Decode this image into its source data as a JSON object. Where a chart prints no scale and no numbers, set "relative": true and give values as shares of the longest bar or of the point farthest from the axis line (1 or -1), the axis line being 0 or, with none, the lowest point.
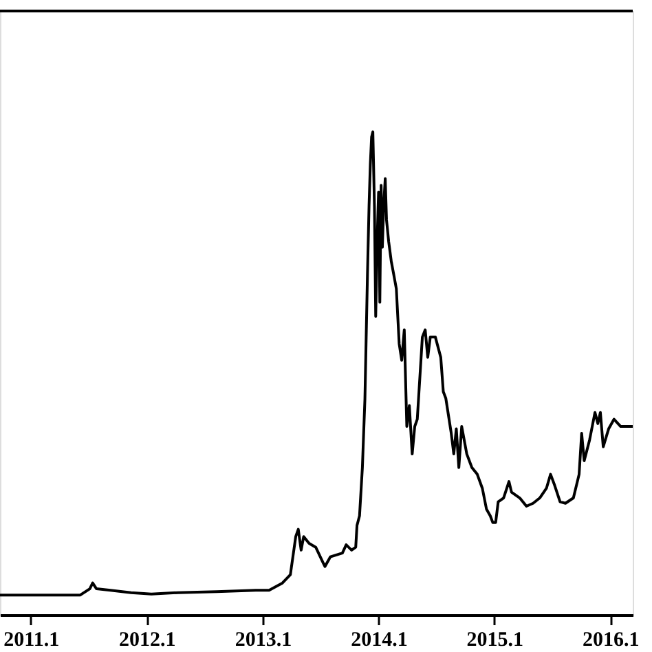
{
  "chart_data": {
    "type": "line",
    "relative": true,
    "line_style": "solid",
    "marker": "none",
    "grid": false,
    "tick_labels": "x",
    "xlim": [
      "2010-09-26",
      "2016-03-12"
    ],
    "xticks": [
      {
        "value": "2011-01",
        "label": "2011.1"
      },
      {
        "value": "2012-01",
        "label": "2012.1"
      },
      {
        "value": "2013-01",
        "label": "2013.1"
      },
      {
        "value": "2014-01",
        "label": "2014.1"
      },
      {
        "value": "2015-01",
        "label": "2015.1"
      },
      {
        "value": "2016-01",
        "label": "2016.1"
      }
    ],
    "series": [
      {
        "color": "#000000",
        "x": [
          "2010-09-26",
          "2011-06-06",
          "2011-07-06",
          "2011-07-15",
          "2011-07-27",
          "2011-09-09",
          "2011-11-13",
          "2012-01-16",
          "2012-04-08",
          "2012-08-09",
          "2012-12-10",
          "2013-01-21",
          "2013-03-04",
          "2013-03-29",
          "2013-04-15",
          "2013-04-23",
          "2013-05-02",
          "2013-05-10",
          "2013-05-27",
          "2013-06-17",
          "2013-07-08",
          "2013-07-16",
          "2013-08-02",
          "2013-09-09",
          "2013-09-21",
          "2013-10-08",
          "2013-10-21",
          "2013-10-25",
          "2013-11-02",
          "2013-11-11",
          "2013-11-19",
          "2013-11-27",
          "2013-12-02",
          "2013-12-06",
          "2013-12-10",
          "2013-12-14",
          "2013-12-19",
          "2013-12-23",
          "2013-12-27",
          "2014-01-01",
          "2014-01-05",
          "2014-01-09",
          "2014-01-13",
          "2014-01-17",
          "2014-01-22",
          "2014-01-26",
          "2014-02-02",
          "2014-02-10",
          "2014-02-18",
          "2014-02-26",
          "2014-03-07",
          "2014-03-15",
          "2014-03-23",
          "2014-03-31",
          "2014-04-08",
          "2014-04-17",
          "2014-04-25",
          "2014-05-03",
          "2014-05-19",
          "2014-05-28",
          "2014-06-05",
          "2014-06-13",
          "2014-06-29",
          "2014-07-16",
          "2014-07-24",
          "2014-08-01",
          "2014-08-18",
          "2014-08-26",
          "2014-09-03",
          "2014-09-11",
          "2014-09-20",
          "2014-10-06",
          "2014-10-22",
          "2014-11-08",
          "2014-11-24",
          "2014-12-07",
          "2014-12-19",
          "2014-12-27",
          "2015-01-05",
          "2015-01-13",
          "2015-01-30",
          "2015-02-16",
          "2015-02-24",
          "2015-03-22",
          "2015-04-12",
          "2015-05-03",
          "2015-05-24",
          "2015-06-14",
          "2015-06-27",
          "2015-07-10",
          "2015-07-27",
          "2015-08-13",
          "2015-09-07",
          "2015-09-25",
          "2015-10-03",
          "2015-10-11",
          "2015-10-28",
          "2015-11-14",
          "2015-11-23",
          "2015-12-01",
          "2015-12-10",
          "2015-12-27",
          "2016-01-13",
          "2016-02-03",
          "2016-03-12"
        ],
        "values": [
          0.041,
          0.041,
          0.054,
          0.066,
          0.054,
          0.051,
          0.046,
          0.043,
          0.046,
          0.048,
          0.051,
          0.051,
          0.066,
          0.083,
          0.162,
          0.177,
          0.134,
          0.162,
          0.148,
          0.14,
          0.111,
          0.1,
          0.12,
          0.128,
          0.145,
          0.134,
          0.14,
          0.185,
          0.205,
          0.305,
          0.447,
          0.704,
          0.846,
          0.932,
          0.989,
          1,
          0.846,
          0.618,
          0.761,
          0.875,
          0.647,
          0.889,
          0.761,
          0.846,
          0.903,
          0.818,
          0.772,
          0.732,
          0.704,
          0.675,
          0.561,
          0.527,
          0.59,
          0.39,
          0.433,
          0.333,
          0.39,
          0.405,
          0.575,
          0.59,
          0.533,
          0.575,
          0.575,
          0.533,
          0.462,
          0.448,
          0.376,
          0.333,
          0.385,
          0.305,
          0.39,
          0.333,
          0.305,
          0.291,
          0.262,
          0.219,
          0.205,
          0.191,
          0.191,
          0.234,
          0.242,
          0.276,
          0.254,
          0.242,
          0.225,
          0.231,
          0.242,
          0.262,
          0.291,
          0.268,
          0.234,
          0.231,
          0.242,
          0.291,
          0.376,
          0.319,
          0.362,
          0.419,
          0.396,
          0.419,
          0.348,
          0.385,
          0.405,
          0.39,
          0.39
        ]
      }
    ]
  }
}
